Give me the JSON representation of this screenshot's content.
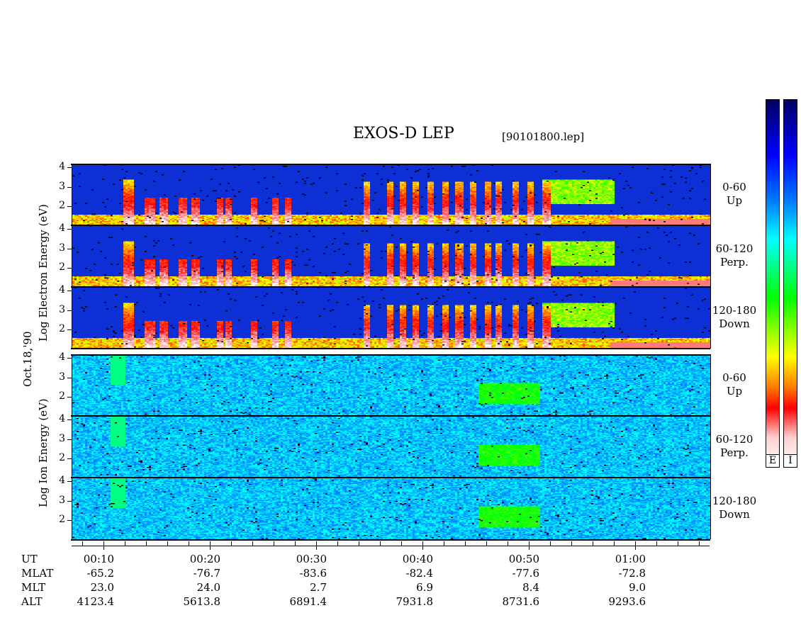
{
  "title": "EXOS-D LEP",
  "file_label": "[90101800.lep]",
  "date_label": "Oct.18,'90",
  "electron_axis_label": "Log   Electron   Energy (eV)",
  "ion_axis_label": "Log   Ion   Energy (eV)",
  "colorbar_labels": [
    "E",
    "I"
  ],
  "panels": [
    {
      "group": "electron",
      "angle": "0-60",
      "direction": "Up"
    },
    {
      "group": "electron",
      "angle": "60-120",
      "direction": "Perp."
    },
    {
      "group": "electron",
      "angle": "120-180",
      "direction": "Down"
    },
    {
      "group": "ion",
      "angle": "0-60",
      "direction": "Up"
    },
    {
      "group": "ion",
      "angle": "60-120",
      "direction": "Perp."
    },
    {
      "group": "ion",
      "angle": "120-180",
      "direction": "Down"
    }
  ],
  "chart_data": {
    "type": "heatmap",
    "title": "EXOS-D LEP",
    "ylabel": "Log Energy (eV)",
    "y_ticks": [
      4,
      3,
      2
    ],
    "ylim": [
      1,
      4.2
    ],
    "x_ticks": [
      {
        "ut": "00:10",
        "mlat": "-65.2",
        "mlt": "23.0",
        "alt": "4123.4"
      },
      {
        "ut": "00:20",
        "mlat": "-76.7",
        "mlt": "24.0",
        "alt": "5613.8"
      },
      {
        "ut": "00:30",
        "mlat": "-83.6",
        "mlt": "2.7",
        "alt": "6891.4"
      },
      {
        "ut": "00:40",
        "mlat": "-82.4",
        "mlt": "6.9",
        "alt": "7931.8"
      },
      {
        "ut": "00:50",
        "mlat": "-77.6",
        "mlt": "8.4",
        "alt": "8731.6"
      },
      {
        "ut": "01:00",
        "mlat": "-72.8",
        "mlt": "9.0",
        "alt": "9293.6"
      }
    ],
    "x_row_labels": [
      "UT",
      "MLAT",
      "MLT",
      "ALT"
    ],
    "xlim_minutes": [
      7,
      67
    ],
    "colormap": [
      "#ffffff",
      "#ff0000",
      "#ffff00",
      "#00ff00",
      "#00ffff",
      "#0000ff",
      "#000080"
    ]
  }
}
